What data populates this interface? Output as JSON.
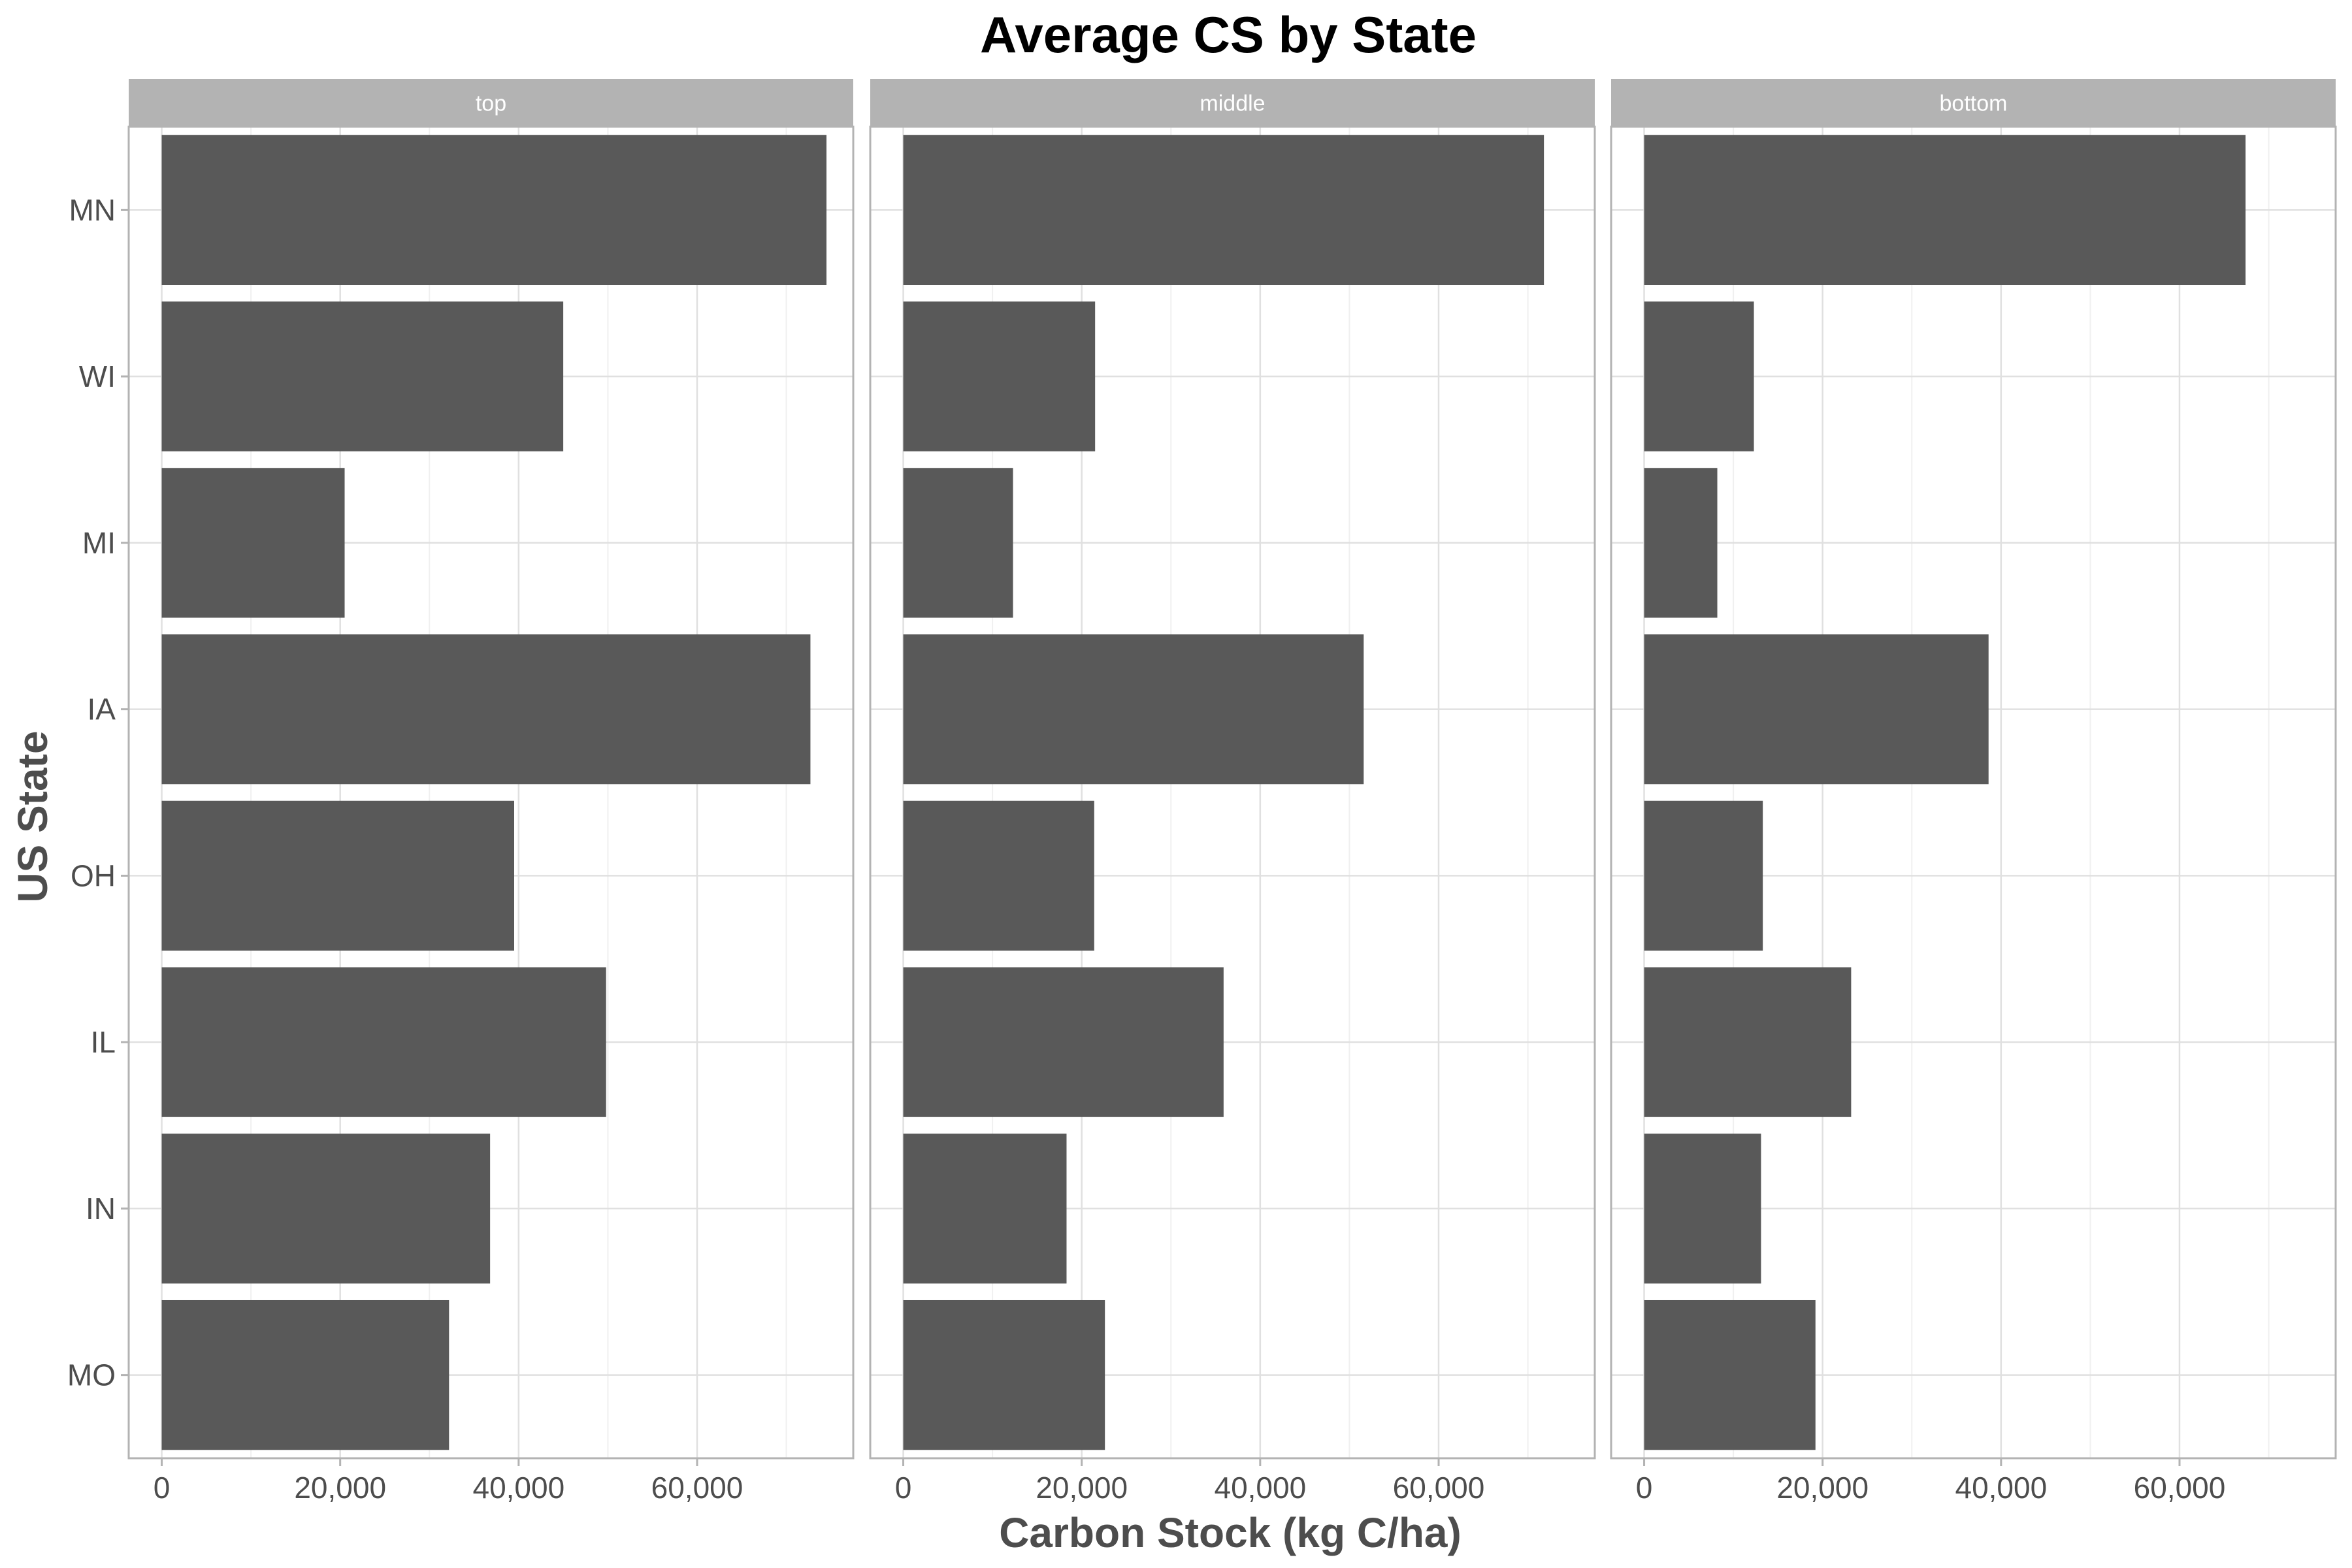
{
  "chart_data": {
    "type": "bar",
    "orientation": "horizontal",
    "title": "Average CS by State",
    "xlabel": "Carbon Stock (kg C/ha)",
    "ylabel": "US State",
    "categories": [
      "MN",
      "WI",
      "MI",
      "IA",
      "OH",
      "IL",
      "IN",
      "MO"
    ],
    "xlim": [
      -3700,
      77500
    ],
    "x_ticks": [
      0,
      20000,
      40000,
      60000
    ],
    "x_tick_labels": [
      "0",
      "20,000",
      "40,000",
      "60,000"
    ],
    "grid": true,
    "legend": "none",
    "panels": [
      {
        "label": "top",
        "values": [
          74500,
          45000,
          20500,
          72700,
          39500,
          49800,
          36800,
          32200
        ]
      },
      {
        "label": "middle",
        "values": [
          71800,
          21500,
          12300,
          51600,
          21400,
          35900,
          18300,
          22600
        ]
      },
      {
        "label": "bottom",
        "values": [
          67400,
          12300,
          8200,
          38600,
          13300,
          23200,
          13100,
          19200
        ]
      }
    ]
  },
  "colors": {
    "bar": "#595959",
    "strip_background": "#b3b3b3",
    "panel_border": "#b3b3b3",
    "grid_major": "#e0e0e0",
    "grid_minor": "#f0f0f0",
    "tick_mark": "#b3b3b3"
  }
}
